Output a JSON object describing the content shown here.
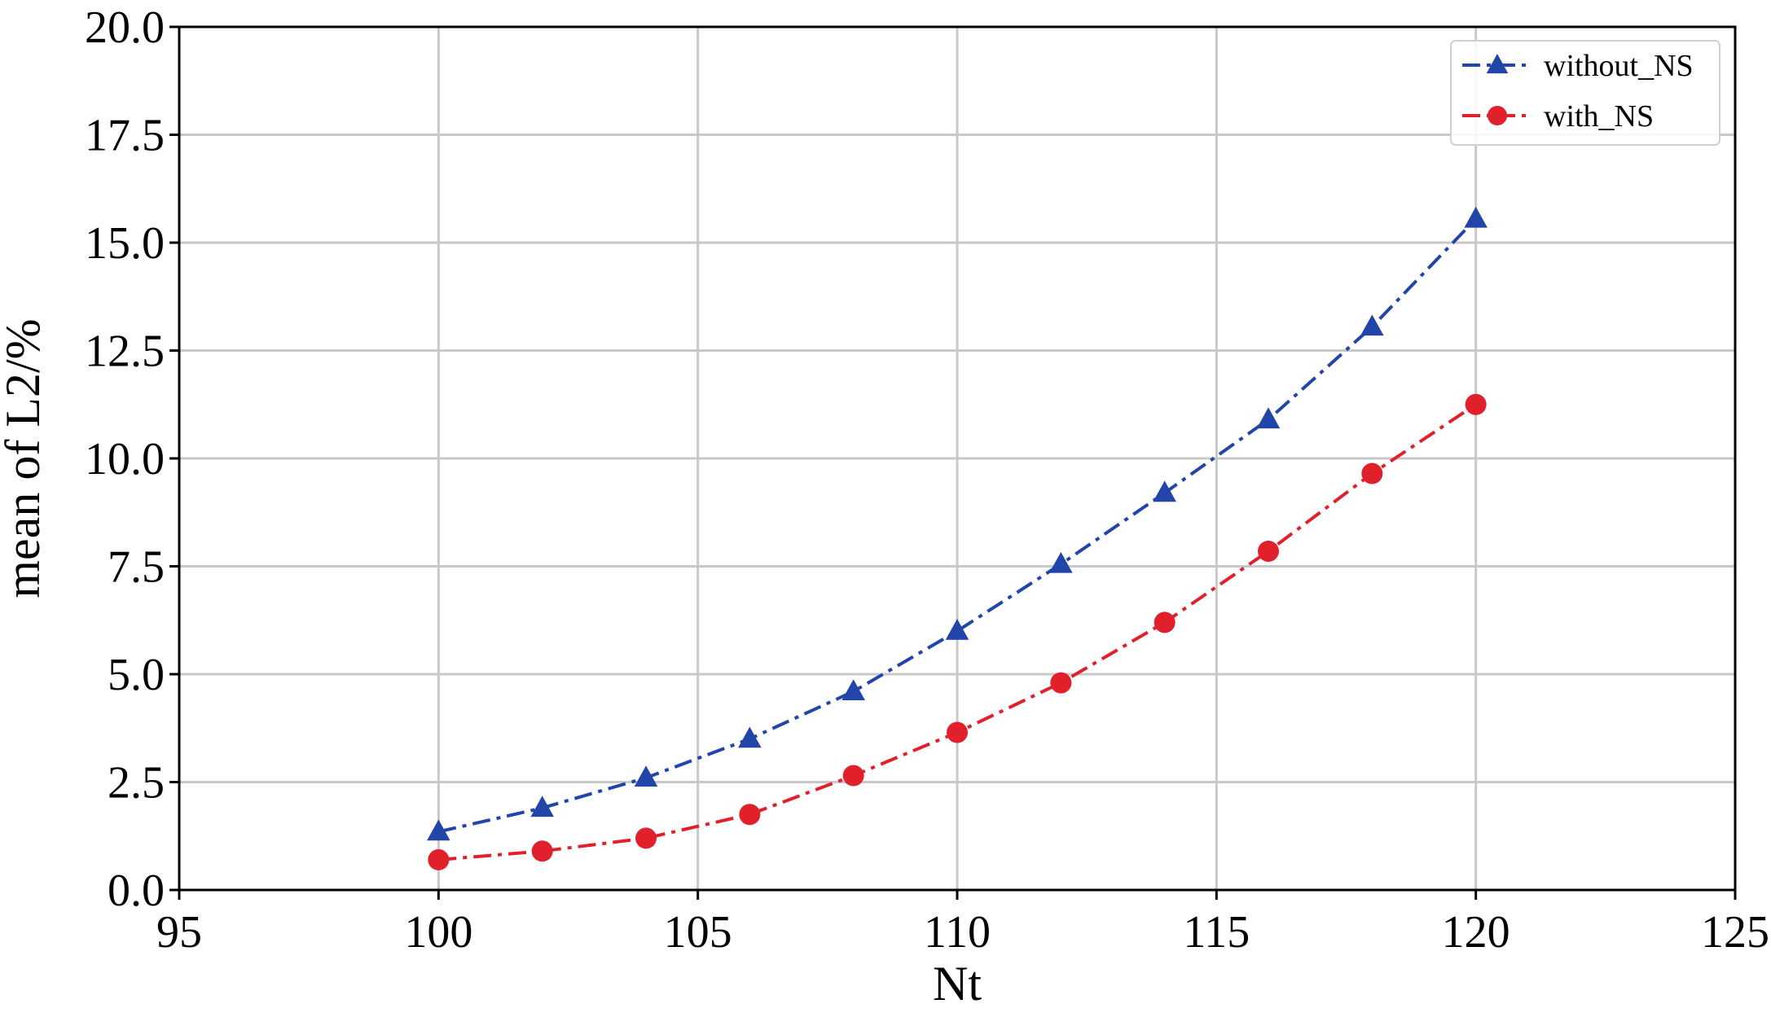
{
  "chart_data": {
    "type": "line",
    "title": "",
    "xlabel": "Nt",
    "ylabel": "mean of L2/%",
    "xlim": [
      95,
      125
    ],
    "ylim": [
      0,
      20
    ],
    "xticks": [
      95,
      100,
      105,
      110,
      115,
      120,
      125
    ],
    "yticks": [
      0,
      2.5,
      5,
      7.5,
      10,
      12.5,
      15,
      17.5,
      20
    ],
    "xtick_labels": [
      "95",
      "100",
      "105",
      "110",
      "115",
      "120",
      "125"
    ],
    "ytick_labels": [
      "0.0",
      "2.5",
      "5.0",
      "7.5",
      "10.0",
      "12.5",
      "15.0",
      "17.5",
      "20.0"
    ],
    "grid": true,
    "legend_position": "top-right",
    "series": [
      {
        "name": "without_NS",
        "color": "#2145a8",
        "marker": "triangle",
        "line_style": "dash-dot",
        "x": [
          100,
          102,
          104,
          106,
          108,
          110,
          112,
          114,
          116,
          118,
          120
        ],
        "values": [
          1.35,
          1.9,
          2.6,
          3.5,
          4.6,
          6.0,
          7.55,
          9.2,
          10.9,
          13.05,
          15.55
        ]
      },
      {
        "name": "with_NS",
        "color": "#e0202a",
        "marker": "circle",
        "line_style": "dash-dot",
        "x": [
          100,
          102,
          104,
          106,
          108,
          110,
          112,
          114,
          116,
          118,
          120
        ],
        "values": [
          0.7,
          0.9,
          1.2,
          1.75,
          2.65,
          3.65,
          4.8,
          6.2,
          7.85,
          9.65,
          11.25
        ]
      }
    ]
  }
}
